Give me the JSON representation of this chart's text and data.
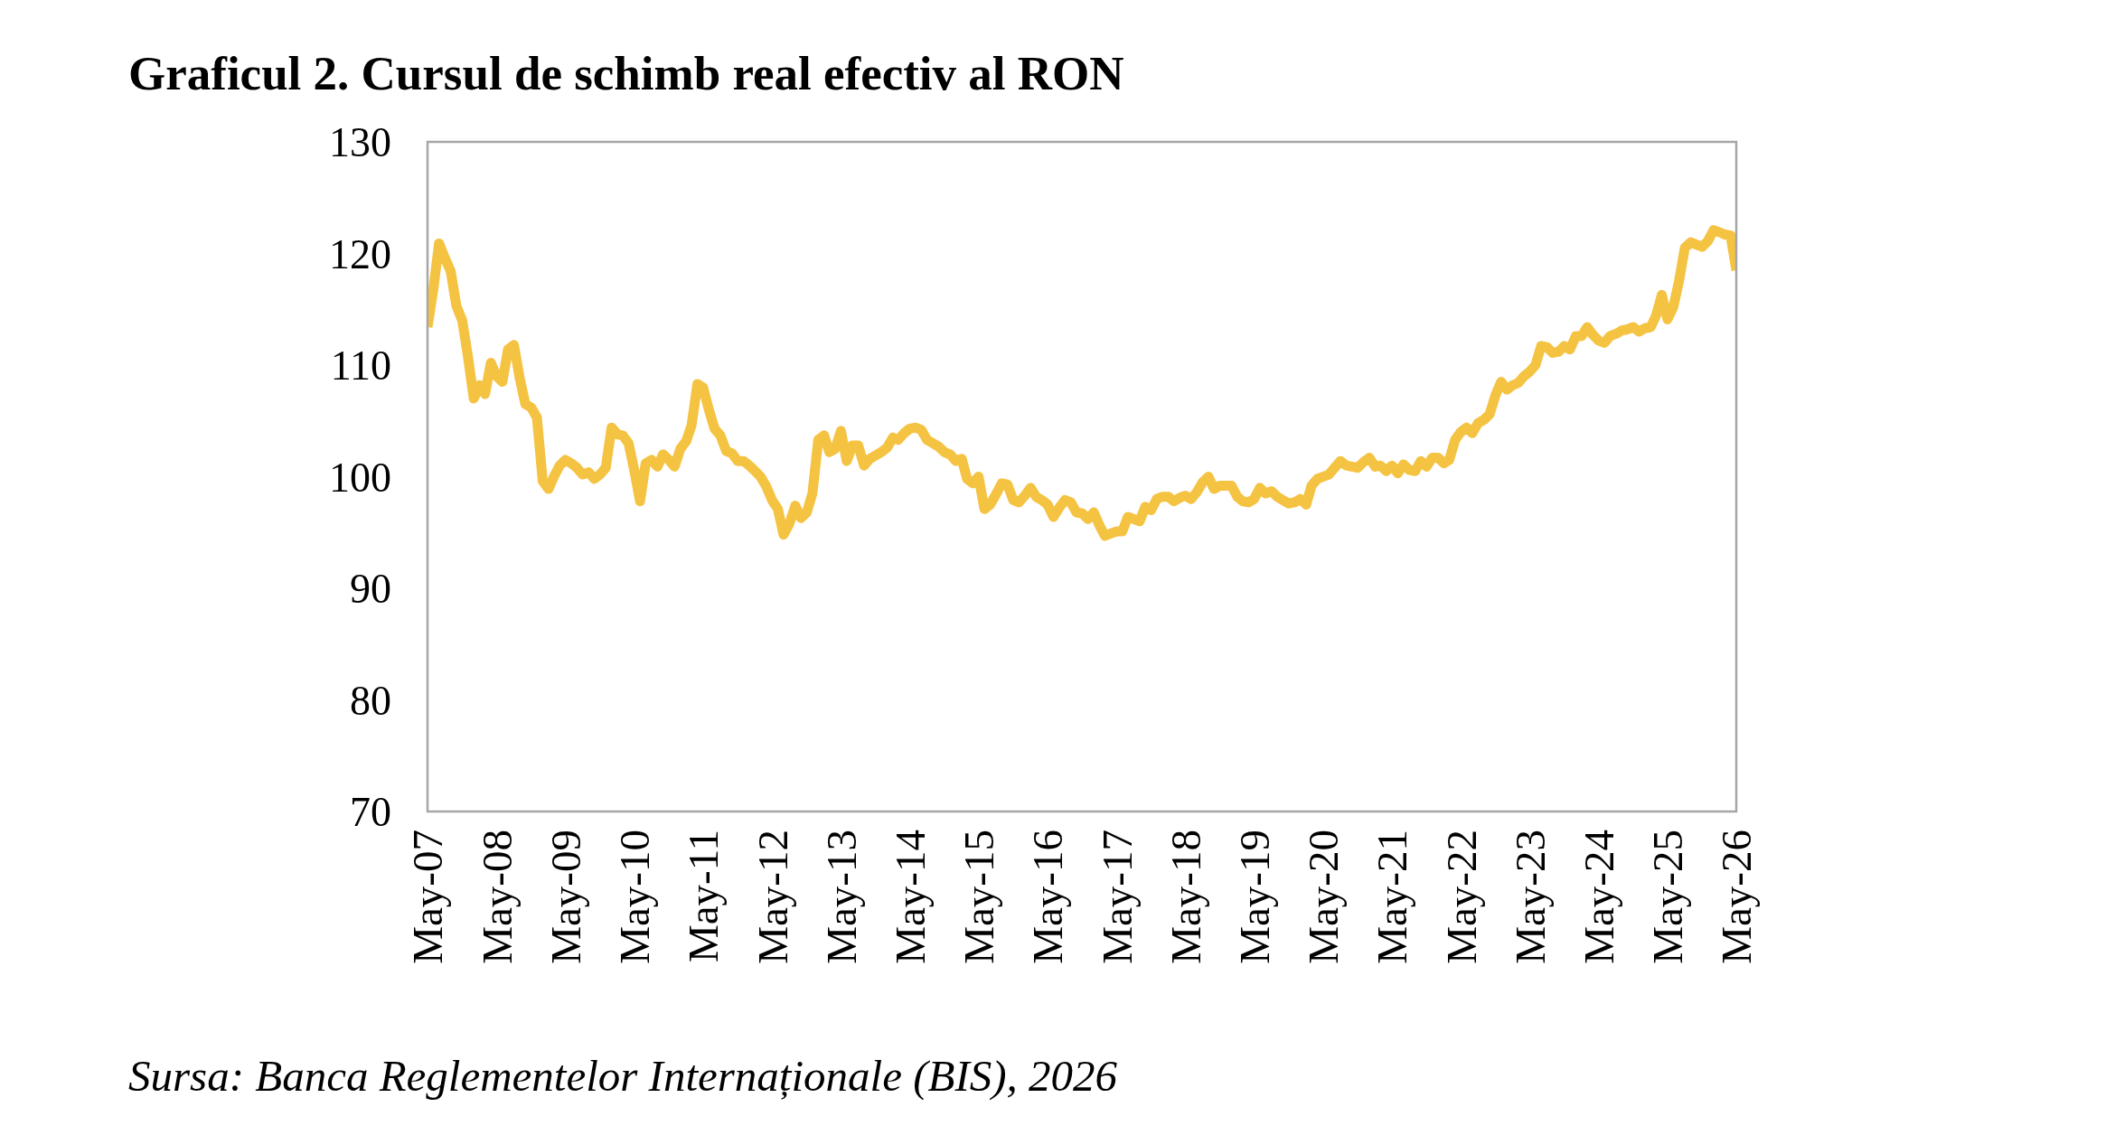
{
  "chart_data": {
    "type": "line",
    "title": "Graficul 2. Cursul de schimb real efectiv al RON",
    "annotations": [
      "Sursa: Banca Reglementelor Internaționale (BIS), 2026"
    ],
    "x": [
      "2007-05",
      "2007-06",
      "2007-07",
      "2007-08",
      "2007-09",
      "2007-10",
      "2007-11",
      "2007-12",
      "2008-01",
      "2008-02",
      "2008-03",
      "2008-04",
      "2008-05",
      "2008-06",
      "2008-07",
      "2008-08",
      "2008-09",
      "2008-10",
      "2008-11",
      "2008-12",
      "2009-01",
      "2009-02",
      "2009-03",
      "2009-04",
      "2009-05",
      "2009-06",
      "2009-07",
      "2009-08",
      "2009-09",
      "2009-10",
      "2009-11",
      "2009-12",
      "2010-01",
      "2010-02",
      "2010-03",
      "2010-04",
      "2010-05",
      "2010-06",
      "2010-07",
      "2010-08",
      "2010-09",
      "2010-10",
      "2010-11",
      "2010-12",
      "2011-01",
      "2011-02",
      "2011-03",
      "2011-04",
      "2011-05",
      "2011-06",
      "2011-07",
      "2011-08",
      "2011-09",
      "2011-10",
      "2011-11",
      "2011-12",
      "2012-01",
      "2012-02",
      "2012-03",
      "2012-04",
      "2012-05",
      "2012-06",
      "2012-07",
      "2012-08",
      "2012-09",
      "2012-10",
      "2012-11",
      "2012-12",
      "2013-01",
      "2013-02",
      "2013-03",
      "2013-04",
      "2013-05",
      "2013-06",
      "2013-07",
      "2013-08",
      "2013-09",
      "2013-10",
      "2013-11",
      "2013-12",
      "2014-01",
      "2014-02",
      "2014-03",
      "2014-04",
      "2014-05",
      "2014-06",
      "2014-07",
      "2014-08",
      "2014-09",
      "2014-10",
      "2014-11",
      "2014-12",
      "2015-01",
      "2015-02",
      "2015-03",
      "2015-04",
      "2015-05",
      "2015-06",
      "2015-07",
      "2015-08",
      "2015-09",
      "2015-10",
      "2015-11",
      "2015-12",
      "2016-01",
      "2016-02",
      "2016-03",
      "2016-04",
      "2016-05",
      "2016-06",
      "2016-07",
      "2016-08",
      "2016-09",
      "2016-10",
      "2016-11",
      "2016-12",
      "2017-01",
      "2017-02",
      "2017-03",
      "2017-04",
      "2017-05",
      "2017-06",
      "2017-07",
      "2017-08",
      "2017-09",
      "2017-10",
      "2017-11",
      "2017-12",
      "2018-01",
      "2018-02",
      "2018-03",
      "2018-04",
      "2018-05",
      "2018-06",
      "2018-07",
      "2018-08",
      "2018-09",
      "2018-10",
      "2018-11",
      "2018-12",
      "2019-01",
      "2019-02",
      "2019-03",
      "2019-04",
      "2019-05",
      "2019-06",
      "2019-07",
      "2019-08",
      "2019-09",
      "2019-10",
      "2019-11",
      "2019-12",
      "2020-01",
      "2020-02",
      "2020-03",
      "2020-04",
      "2020-05",
      "2020-06",
      "2020-07",
      "2020-08",
      "2020-09",
      "2020-10",
      "2020-11",
      "2020-12",
      "2021-01",
      "2021-02",
      "2021-03",
      "2021-04",
      "2021-05",
      "2021-06",
      "2021-07",
      "2021-08",
      "2021-09",
      "2021-10",
      "2021-11",
      "2021-12",
      "2022-01",
      "2022-02",
      "2022-03",
      "2022-04",
      "2022-05",
      "2022-06",
      "2022-07",
      "2022-08",
      "2022-09",
      "2022-10",
      "2022-11",
      "2022-12",
      "2023-01",
      "2023-02",
      "2023-03",
      "2023-04",
      "2023-05",
      "2023-06",
      "2023-07",
      "2023-08",
      "2023-09",
      "2023-10",
      "2023-11",
      "2023-12",
      "2024-01",
      "2024-02",
      "2024-03",
      "2024-04",
      "2024-05",
      "2024-06",
      "2024-07",
      "2024-08",
      "2024-09",
      "2024-10",
      "2024-11",
      "2024-12",
      "2025-01",
      "2025-02",
      "2025-03",
      "2025-04",
      "2025-05",
      "2025-06",
      "2025-07",
      "2025-08",
      "2025-09",
      "2025-10",
      "2025-11",
      "2025-12",
      "2026-01",
      "2026-02",
      "2026-03",
      "2026-04",
      "2026-05"
    ],
    "series": [
      {
        "color": "#f5c342",
        "values": [
          113.4,
          116.8,
          120.9,
          119.6,
          118.4,
          115.3,
          114.0,
          110.8,
          107.0,
          108.2,
          107.4,
          110.2,
          109.0,
          108.5,
          111.4,
          111.8,
          108.8,
          106.5,
          106.2,
          105.3,
          99.6,
          98.9,
          100.0,
          101.0,
          101.5,
          101.2,
          100.8,
          100.2,
          100.4,
          99.8,
          100.2,
          100.8,
          104.4,
          103.8,
          103.7,
          103.0,
          100.6,
          97.8,
          101.2,
          101.5,
          100.9,
          102.0,
          101.5,
          100.9,
          102.5,
          103.2,
          104.6,
          108.3,
          108.0,
          106.0,
          104.3,
          103.7,
          102.3,
          102.1,
          101.4,
          101.4,
          101.0,
          100.5,
          100.0,
          99.1,
          97.9,
          97.1,
          94.8,
          95.8,
          97.4,
          96.3,
          96.8,
          98.5,
          103.3,
          103.7,
          102.2,
          102.5,
          104.1,
          101.4,
          102.8,
          102.8,
          101.0,
          101.6,
          101.9,
          102.2,
          102.6,
          103.5,
          103.3,
          103.9,
          104.3,
          104.4,
          104.2,
          103.3,
          103.0,
          102.7,
          102.2,
          102.0,
          101.4,
          101.6,
          99.8,
          99.4,
          100.0,
          97.1,
          97.5,
          98.4,
          99.4,
          99.3,
          97.9,
          97.7,
          98.3,
          99.0,
          98.2,
          97.9,
          97.5,
          96.4,
          97.2,
          97.9,
          97.7,
          96.8,
          96.7,
          96.2,
          96.8,
          95.6,
          94.7,
          94.9,
          95.1,
          95.1,
          96.4,
          96.2,
          96.0,
          97.3,
          97.0,
          98.0,
          98.2,
          98.2,
          97.8,
          98.1,
          98.3,
          98.0,
          98.6,
          99.5,
          100.0,
          98.9,
          99.2,
          99.2,
          99.2,
          98.2,
          97.8,
          97.7,
          98.0,
          99.0,
          98.5,
          98.7,
          98.2,
          97.9,
          97.6,
          97.7,
          98.0,
          97.5,
          99.2,
          99.8,
          100.0,
          100.2,
          100.8,
          101.4,
          101.0,
          100.9,
          100.8,
          101.3,
          101.7,
          100.9,
          101.0,
          100.5,
          101.0,
          100.3,
          101.1,
          100.6,
          100.5,
          101.4,
          100.9,
          101.7,
          101.7,
          101.2,
          101.5,
          103.3,
          104.0,
          104.4,
          103.9,
          104.8,
          105.1,
          105.6,
          107.3,
          108.5,
          107.8,
          108.2,
          108.4,
          109.0,
          109.4,
          110.0,
          111.7,
          111.6,
          111.1,
          111.2,
          111.7,
          111.4,
          112.6,
          112.6,
          113.4,
          112.7,
          112.2,
          112.0,
          112.6,
          112.8,
          113.1,
          113.2,
          113.4,
          113.0,
          113.3,
          113.4,
          114.4,
          116.3,
          114.1,
          115.2,
          117.5,
          120.5,
          121.0,
          120.8,
          120.6,
          121.1,
          122.1,
          121.9,
          121.7,
          121.6,
          118.5
        ]
      }
    ],
    "xlim": [
      "2007-05",
      "2026-05"
    ],
    "xticks": [
      {
        "value": "2007-05",
        "label": "May-07"
      },
      {
        "value": "2008-05",
        "label": "May-08"
      },
      {
        "value": "2009-05",
        "label": "May-09"
      },
      {
        "value": "2010-05",
        "label": "May-10"
      },
      {
        "value": "2011-05",
        "label": "May-11"
      },
      {
        "value": "2012-05",
        "label": "May-12"
      },
      {
        "value": "2013-05",
        "label": "May-13"
      },
      {
        "value": "2014-05",
        "label": "May-14"
      },
      {
        "value": "2015-05",
        "label": "May-15"
      },
      {
        "value": "2016-05",
        "label": "May-16"
      },
      {
        "value": "2017-05",
        "label": "May-17"
      },
      {
        "value": "2018-05",
        "label": "May-18"
      },
      {
        "value": "2019-05",
        "label": "May-19"
      },
      {
        "value": "2020-05",
        "label": "May-20"
      },
      {
        "value": "2021-05",
        "label": "May-21"
      },
      {
        "value": "2022-05",
        "label": "May-22"
      },
      {
        "value": "2023-05",
        "label": "May-23"
      },
      {
        "value": "2024-05",
        "label": "May-24"
      },
      {
        "value": "2025-05",
        "label": "May-25"
      },
      {
        "value": "2026-05",
        "label": "May-26"
      }
    ],
    "ylim": [
      70,
      130
    ],
    "yticks": [
      70,
      80,
      90,
      100,
      110,
      120,
      130
    ]
  }
}
